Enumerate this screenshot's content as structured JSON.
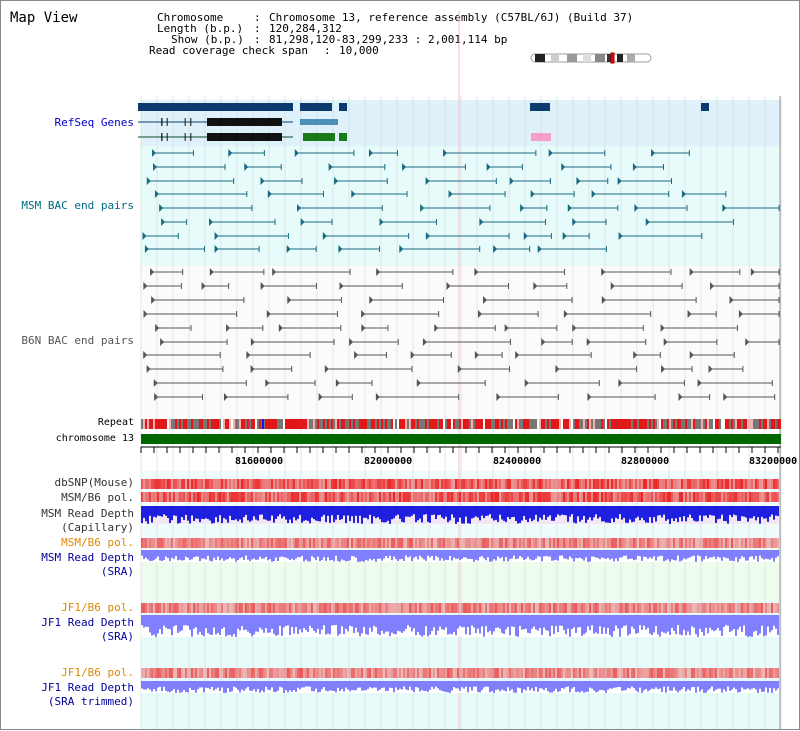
{
  "title": "Map View",
  "info": {
    "chromosome_key": "Chromosome",
    "chromosome_val": "Chromosome 13, reference assembly (C57BL/6J) (Build 37)",
    "length_key": "Length (b.p.)",
    "length_val": "120,284,312",
    "show_key": "Show (b.p.)",
    "show_val": "81,298,120-83,299,233 : 2,001,114 bp",
    "coverage_key": "Read coverage check span",
    "coverage_val": "10,000"
  },
  "tracks": {
    "refseq": "RefSeq Genes",
    "msm_bac": "MSM BAC end pairs",
    "b6n_bac": "B6N BAC end pairs",
    "repeat": "Repeat",
    "chromosome": "chromosome 13",
    "dbsnp": "dbSNP(Mouse)",
    "msm_b6_pol": "MSM/B6 pol.",
    "msm_read_depth_cap_1": "MSM Read Depth",
    "msm_read_depth_cap_2": "(Capillary)",
    "msm_b6_pol2": "MSM/B6 pol.",
    "msm_read_depth_sra_1": "MSM Read Depth",
    "msm_read_depth_sra_2": "(SRA)",
    "jf1_b6_pol": "JF1/B6 pol.",
    "jf1_read_depth_sra_1": "JF1 Read Depth",
    "jf1_read_depth_sra_2": "(SRA)",
    "jf1_b6_pol2": "JF1/B6 pol.",
    "jf1_read_depth_trim_1": "JF1 Read Depth",
    "jf1_read_depth_trim_2": "(SRA trimmed)"
  },
  "axis": {
    "ticks": [
      "81600000",
      "82000000",
      "82400000",
      "82800000",
      "83200000"
    ]
  },
  "colors": {
    "refseq_label": "#0000cc",
    "msm_label": "#006b80",
    "b6n_label": "#555555",
    "orange_label": "#e08800",
    "blue_label": "#000099",
    "chromosome_bar": "#006600",
    "depth_dark": "#1f1fe0",
    "depth_light": "#8080ff"
  }
}
